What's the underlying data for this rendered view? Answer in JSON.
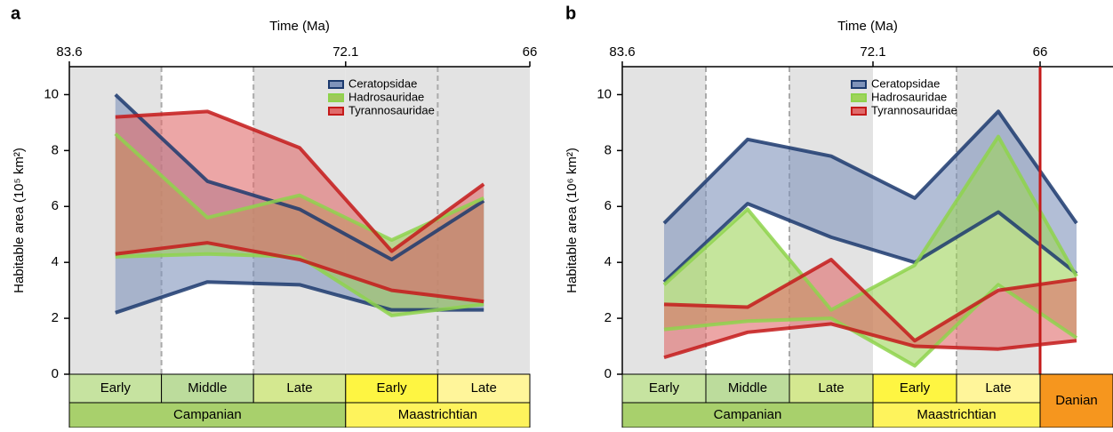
{
  "chart_data": [
    {
      "type": "area-range",
      "label": "a",
      "x_label": "Time (Ma)",
      "y_label": "Habitable area (10⁵ km²)",
      "xticks": [
        83.6,
        72.1,
        66
      ],
      "ylim": [
        0,
        11
      ],
      "yticks": [
        0,
        2,
        4,
        6,
        8,
        10
      ],
      "stages": [
        {
          "name": "Campanian",
          "color": "#a8d06c",
          "substages": [
            "Early",
            "Middle",
            "Late"
          ],
          "substage_colors": [
            "#c6e3a0",
            "#bcdc9c",
            "#d4e890"
          ]
        },
        {
          "name": "Maastrichtian",
          "color": "#fef35c",
          "substages": [
            "Early",
            "Late"
          ],
          "substage_colors": [
            "#fef542",
            "#fff59a"
          ]
        }
      ],
      "series": [
        {
          "name": "Ceratopsidae",
          "color": "#1c3a6e",
          "fill": "#7f93ba",
          "upper": [
            10.0,
            6.9,
            5.9,
            4.1,
            6.2
          ],
          "lower": [
            2.2,
            3.3,
            3.2,
            2.3,
            2.3
          ]
        },
        {
          "name": "Hadrosauridae",
          "color": "#8ed34c",
          "fill": "#9fc95a",
          "upper": [
            8.6,
            5.6,
            6.4,
            4.8,
            6.3
          ],
          "lower": [
            4.2,
            4.3,
            4.2,
            2.1,
            2.5
          ]
        },
        {
          "name": "Tyrannosauridae",
          "color": "#c41a1a",
          "fill": "#e06a6a",
          "upper": [
            9.2,
            9.4,
            8.1,
            4.4,
            6.8
          ],
          "lower": [
            4.3,
            4.7,
            4.1,
            3.0,
            2.6
          ]
        }
      ]
    },
    {
      "type": "area-range",
      "label": "b",
      "x_label": "Time (Ma)",
      "y_label": "Habitable area (10⁶ km²)",
      "xticks": [
        83.6,
        72.1,
        66
      ],
      "ylim": [
        0,
        11
      ],
      "yticks": [
        0,
        2,
        4,
        6,
        8,
        10
      ],
      "kpg_line": true,
      "stages": [
        {
          "name": "Campanian",
          "color": "#a8d06c",
          "substages": [
            "Early",
            "Middle",
            "Late"
          ],
          "substage_colors": [
            "#c6e3a0",
            "#bcdc9c",
            "#d4e890"
          ]
        },
        {
          "name": "Maastrichtian",
          "color": "#fef35c",
          "substages": [
            "Early",
            "Late"
          ],
          "substage_colors": [
            "#fef542",
            "#fff59a"
          ]
        },
        {
          "name": "Danian",
          "color": "#f6961e",
          "substages": [],
          "substage_colors": []
        }
      ],
      "series": [
        {
          "name": "Ceratopsidae",
          "color": "#1c3a6e",
          "fill": "#7f93ba",
          "upper": [
            5.4,
            8.4,
            7.8,
            6.3,
            9.4,
            5.4
          ],
          "lower": [
            3.3,
            6.1,
            4.9,
            4.0,
            5.8,
            3.6
          ]
        },
        {
          "name": "Hadrosauridae",
          "color": "#8ed34c",
          "fill": "#9fd45a",
          "upper": [
            3.2,
            5.9,
            2.3,
            3.9,
            8.5,
            3.5
          ],
          "lower": [
            1.6,
            1.9,
            2.0,
            0.3,
            3.2,
            1.3
          ]
        },
        {
          "name": "Tyrannosauridae",
          "color": "#c41a1a",
          "fill": "#e06a6a",
          "upper": [
            2.5,
            2.4,
            4.1,
            1.2,
            3.0,
            3.4
          ],
          "lower": [
            0.6,
            1.5,
            1.8,
            1.0,
            0.9,
            1.2
          ]
        }
      ]
    }
  ]
}
